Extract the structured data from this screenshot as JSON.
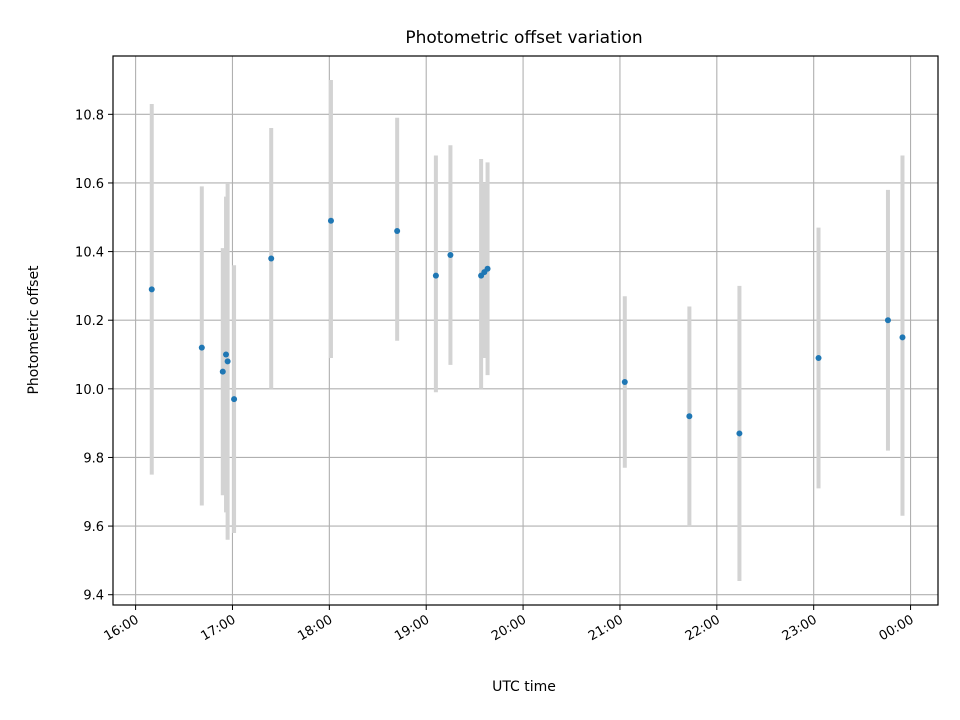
{
  "chart_data": {
    "type": "scatter",
    "title": "Photometric offset variation",
    "xlabel": "UTC time",
    "ylabel": "Photometric offset",
    "x_ticks": [
      "16:00",
      "17:00",
      "18:00",
      "19:00",
      "20:00",
      "21:00",
      "22:00",
      "23:00",
      "00:00"
    ],
    "y_ticks": [
      "9.4",
      "9.6",
      "9.8",
      "10.0",
      "10.2",
      "10.4",
      "10.6",
      "10.8"
    ],
    "xlim": [
      "15:46",
      "00:17"
    ],
    "ylim": [
      9.37,
      10.97
    ],
    "grid": true,
    "point_color": "#1f77b4",
    "errorbar_color": "#d3d3d3",
    "points": [
      {
        "x": "16:10",
        "y": 10.29,
        "low": 9.75,
        "high": 10.83
      },
      {
        "x": "16:41",
        "y": 10.12,
        "low": 9.66,
        "high": 10.59
      },
      {
        "x": "16:54",
        "y": 10.05,
        "low": 9.69,
        "high": 10.41
      },
      {
        "x": "16:56",
        "y": 10.1,
        "low": 9.64,
        "high": 10.56
      },
      {
        "x": "16:57",
        "y": 10.08,
        "low": 9.56,
        "high": 10.6
      },
      {
        "x": "17:01",
        "y": 9.97,
        "low": 9.58,
        "high": 10.36
      },
      {
        "x": "17:24",
        "y": 10.38,
        "low": 10.0,
        "high": 10.76
      },
      {
        "x": "18:01",
        "y": 10.49,
        "low": 10.09,
        "high": 10.9
      },
      {
        "x": "18:42",
        "y": 10.46,
        "low": 10.14,
        "high": 10.79
      },
      {
        "x": "19:06",
        "y": 10.33,
        "low": 9.99,
        "high": 10.68
      },
      {
        "x": "19:15",
        "y": 10.39,
        "low": 10.07,
        "high": 10.71
      },
      {
        "x": "19:34",
        "y": 10.33,
        "low": 10.0,
        "high": 10.67
      },
      {
        "x": "19:36",
        "y": 10.34,
        "low": 10.09,
        "high": 10.6
      },
      {
        "x": "19:38",
        "y": 10.35,
        "low": 10.04,
        "high": 10.66
      },
      {
        "x": "21:03",
        "y": 10.02,
        "low": 9.77,
        "high": 10.27
      },
      {
        "x": "21:43",
        "y": 9.92,
        "low": 9.6,
        "high": 10.24
      },
      {
        "x": "22:14",
        "y": 9.87,
        "low": 9.44,
        "high": 10.3
      },
      {
        "x": "23:03",
        "y": 10.09,
        "low": 9.71,
        "high": 10.47
      },
      {
        "x": "23:46",
        "y": 10.2,
        "low": 9.82,
        "high": 10.58
      },
      {
        "x": "23:55",
        "y": 10.15,
        "low": 9.63,
        "high": 10.68
      }
    ]
  }
}
